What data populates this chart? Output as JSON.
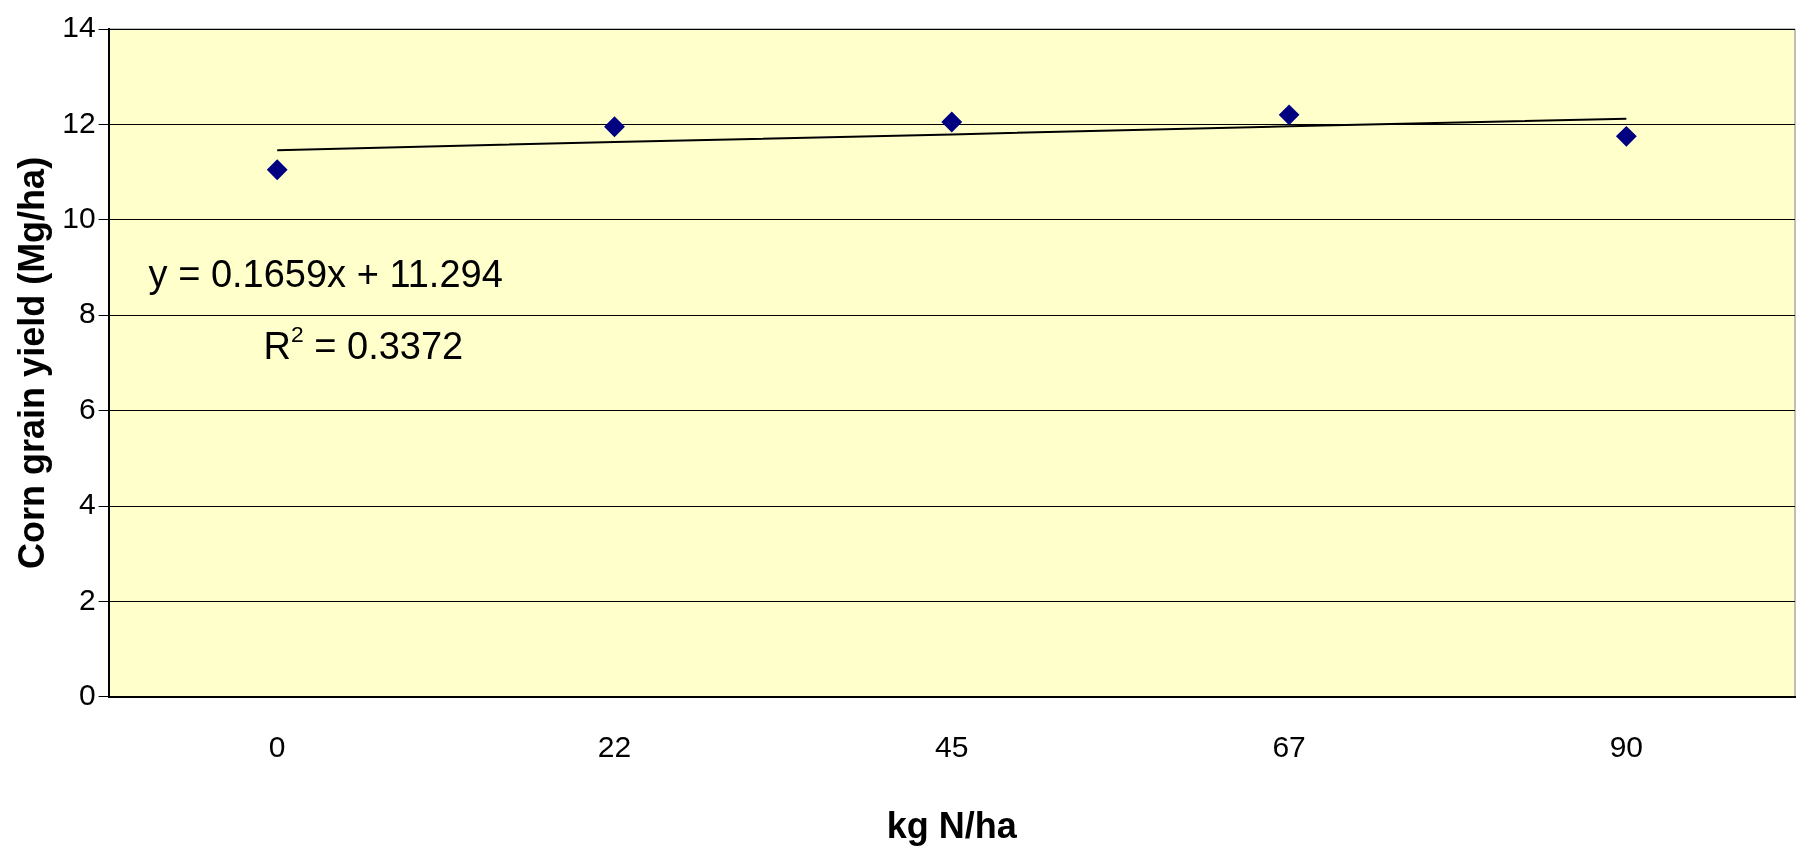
{
  "chart_data": {
    "type": "scatter",
    "xlabel": "kg N/ha",
    "ylabel": "Corn grain yield (Mg/ha)",
    "categories": [
      "0",
      "22",
      "45",
      "67",
      "90"
    ],
    "series": [
      {
        "color": "#000080",
        "marker": "diamond",
        "values": [
          11.05,
          11.95,
          12.05,
          12.2,
          11.75
        ]
      },
      {
        "type": "line",
        "color": "#000000",
        "marker": "none",
        "line_style": "solid",
        "values": [
          11.46,
          11.63,
          11.79,
          11.96,
          12.12
        ]
      }
    ],
    "ylim": [
      0,
      14
    ],
    "yticks": [
      0,
      2,
      4,
      6,
      8,
      10,
      12,
      14
    ],
    "grid": "y",
    "legend": false,
    "annotations": [
      "y = 0.1659x + 11.294",
      "R$^{2}$ = 0.3372"
    ]
  }
}
